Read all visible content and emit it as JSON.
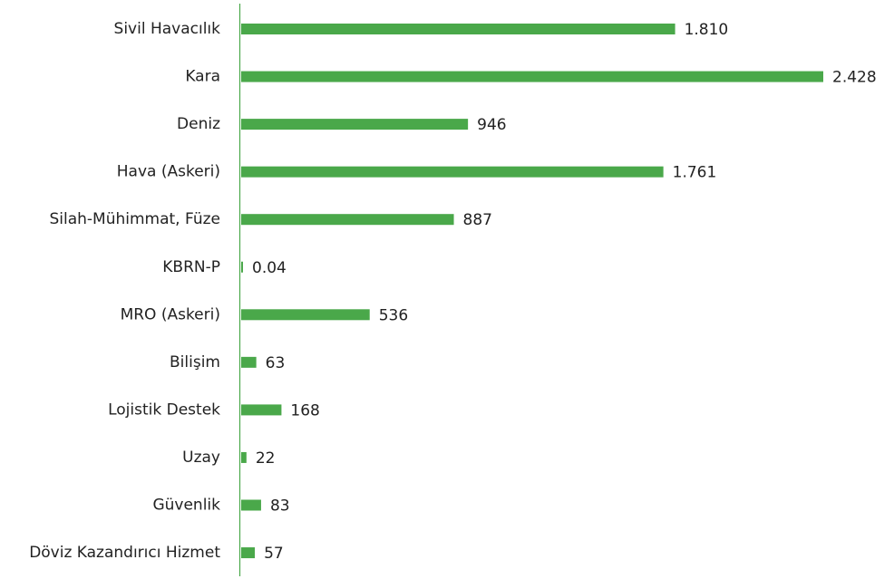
{
  "chart_data": {
    "type": "hbar",
    "categories": [
      "Sivil Havacılık",
      "Kara",
      "Deniz",
      "Hava (Askeri)",
      "Silah-Mühimmat, Füze",
      "KBRN-P",
      "MRO (Askeri)",
      "Bilişim",
      "Lojistik Destek",
      "Uzay",
      "Güvenlik",
      "Döviz Kazandırıcı Hizmet"
    ],
    "values": [
      1810,
      2428,
      946,
      1761,
      887,
      0.04,
      536,
      63,
      168,
      22,
      83,
      57
    ],
    "value_labels": [
      "1.810",
      "2.428",
      "946",
      "1.761",
      "887",
      "0.04",
      "536",
      "63",
      "168",
      "22",
      "83",
      "57"
    ],
    "color": "#4aa84a"
  }
}
